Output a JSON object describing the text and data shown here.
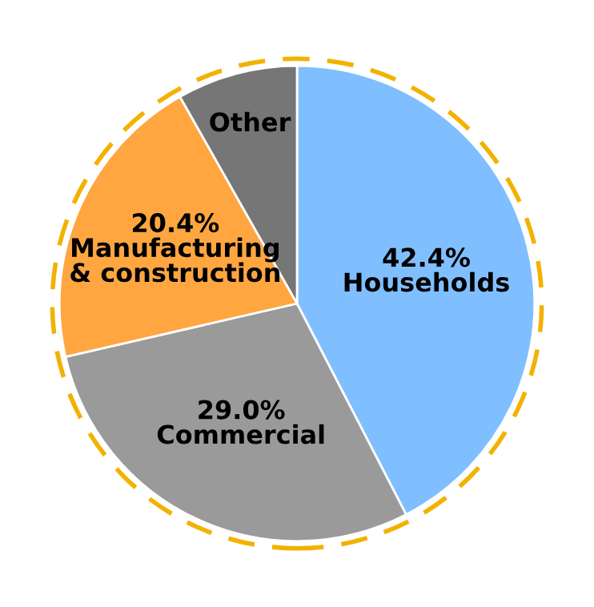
{
  "chart_data": {
    "type": "pie",
    "categories": [
      "Households",
      "Commercial",
      "Manufacturing\n& construction",
      "Other"
    ],
    "values": [
      42.4,
      29.0,
      20.4,
      8.2
    ],
    "colors": [
      "#80bfff",
      "#9a9a9a",
      "#ffa640",
      "#767676"
    ],
    "value_labels": [
      "42.4%",
      "29.0%",
      "20.4%",
      null
    ],
    "legend": false
  }
}
